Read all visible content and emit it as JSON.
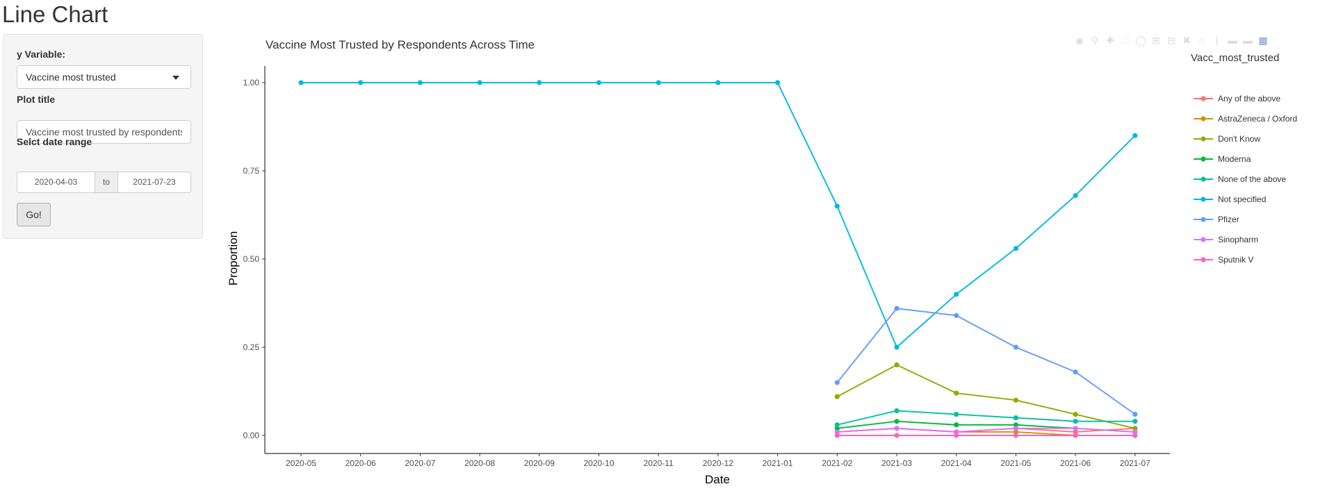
{
  "app": {
    "title": "Line Chart"
  },
  "sidebar": {
    "y_label": "y Variable:",
    "y_value": "Vaccine most trusted",
    "title_label": "Plot title",
    "title_value": "Vaccine most trusted by respondents",
    "date_label": "Selct date range",
    "date_start": "2020-04-03",
    "date_sep": "to",
    "date_end": "2021-07-23",
    "go_label": "Go!"
  },
  "modebar": {
    "icons": [
      "camera-icon",
      "zoom-icon",
      "pan-icon",
      "box-select-icon",
      "lasso-icon",
      "zoom-in-icon",
      "zoom-out-icon",
      "autoscale-icon",
      "reset-axes-icon",
      "spike-lines-icon",
      "hover-closest-icon",
      "hover-compare-icon",
      "plotly-logo-icon"
    ]
  },
  "chart_data": {
    "type": "line",
    "title": "Vaccine Most Trusted by Respondents Across Time",
    "xlabel": "Date",
    "ylabel": "Proportion",
    "legend_title": "Vacc_most_trusted",
    "legend_position": "right",
    "ylim": [
      0,
      1.05
    ],
    "yticks": [
      "0.00",
      "0.25",
      "0.50",
      "0.75",
      "1.00"
    ],
    "x": [
      "2020-05",
      "2020-06",
      "2020-07",
      "2020-08",
      "2020-09",
      "2020-10",
      "2020-11",
      "2020-12",
      "2021-01",
      "2021-02",
      "2021-03",
      "2021-04",
      "2021-05",
      "2021-06",
      "2021-07"
    ],
    "series": [
      {
        "name": "Any of the above",
        "color": "#F8766D",
        "values": [
          null,
          null,
          null,
          null,
          null,
          null,
          null,
          null,
          null,
          0.01,
          0.02,
          0.01,
          0.02,
          0.01,
          0.02
        ]
      },
      {
        "name": "AstraZeneca / Oxford",
        "color": "#D39200",
        "values": [
          null,
          null,
          null,
          null,
          null,
          null,
          null,
          null,
          null,
          0.01,
          0.02,
          0.01,
          0.01,
          0.0,
          0.0
        ]
      },
      {
        "name": "Don't Know",
        "color": "#93AA00",
        "values": [
          null,
          null,
          null,
          null,
          null,
          null,
          null,
          null,
          null,
          0.11,
          0.2,
          0.12,
          0.1,
          0.06,
          0.02
        ]
      },
      {
        "name": "Moderna",
        "color": "#00BA38",
        "values": [
          null,
          null,
          null,
          null,
          null,
          null,
          null,
          null,
          null,
          0.02,
          0.04,
          0.03,
          0.03,
          0.02,
          0.01
        ]
      },
      {
        "name": "None of the above",
        "color": "#00C19F",
        "values": [
          null,
          null,
          null,
          null,
          null,
          null,
          null,
          null,
          null,
          0.03,
          0.07,
          0.06,
          0.05,
          0.04,
          0.04
        ]
      },
      {
        "name": "Not specified",
        "color": "#00B9E3",
        "values": [
          1.0,
          1.0,
          1.0,
          1.0,
          1.0,
          1.0,
          1.0,
          1.0,
          1.0,
          0.65,
          0.25,
          0.4,
          0.53,
          0.68,
          0.85
        ]
      },
      {
        "name": "Pfizer",
        "color": "#619CFF",
        "values": [
          null,
          null,
          null,
          null,
          null,
          null,
          null,
          null,
          null,
          0.15,
          0.36,
          0.34,
          0.25,
          0.18,
          0.06
        ]
      },
      {
        "name": "Sinopharm",
        "color": "#DB72FB",
        "values": [
          null,
          null,
          null,
          null,
          null,
          null,
          null,
          null,
          null,
          0.01,
          0.02,
          0.01,
          0.02,
          0.02,
          0.01
        ]
      },
      {
        "name": "Sputnik V",
        "color": "#FF61C3",
        "values": [
          null,
          null,
          null,
          null,
          null,
          null,
          null,
          null,
          null,
          0.0,
          0.0,
          0.0,
          0.0,
          0.0,
          0.0
        ]
      }
    ]
  }
}
